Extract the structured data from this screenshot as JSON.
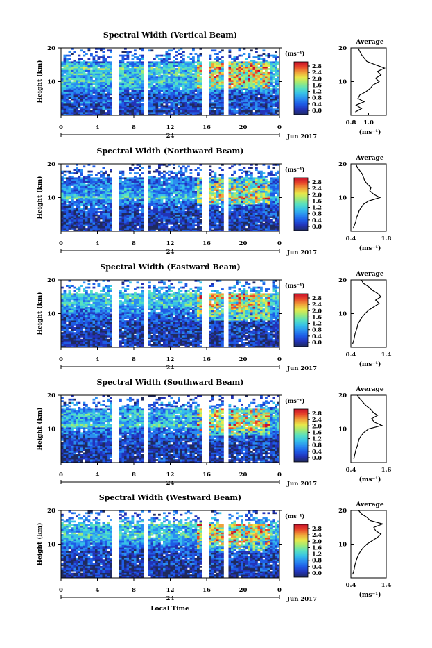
{
  "shared": {
    "y_label": "Height (km)",
    "x_ticks": [
      "0",
      "4",
      "8",
      "12",
      "16",
      "20",
      "0"
    ],
    "day_label": "24",
    "month_label": "Jun 2017",
    "x_axis_title": "Local Time",
    "average_title": "Average",
    "unit_label": "(ms⁻¹)",
    "colorbar_ticks": [
      "2.8",
      "2.4",
      "2.0",
      "1.6",
      "1.2",
      "0.8",
      "0.4",
      "0.0"
    ],
    "colormap": [
      "#1f2a5e",
      "#2233b8",
      "#1e5ce6",
      "#2a8cf0",
      "#36c0e8",
      "#58e0c0",
      "#9eea78",
      "#e8e84a",
      "#f0a23a",
      "#e8472a",
      "#c8102a"
    ],
    "gap_hours": [
      [
        5.6,
        6.3
      ],
      [
        9.2,
        9.7
      ],
      [
        15.6,
        16.3
      ],
      [
        18.0,
        18.5
      ]
    ]
  },
  "chart_data": [
    {
      "type": "heatmap",
      "title": "Spectral Width (Vertical Beam)",
      "x_range_hours": [
        0,
        24
      ],
      "ylim_km": [
        0,
        20
      ],
      "y_ticks": [
        "20",
        "10"
      ],
      "color_range": [
        0.0,
        2.8
      ],
      "profile": {
        "title": "Average",
        "xlabel": "(ms⁻¹)",
        "x_ticks": [
          "0.8",
          "1.0"
        ],
        "xlim": [
          0.8,
          1.2
        ],
        "height_km": [
          1,
          2,
          3,
          4,
          5,
          6,
          7,
          8,
          9,
          10,
          11,
          12,
          13,
          14,
          15,
          16,
          17,
          18,
          19,
          20
        ],
        "values": [
          0.85,
          0.92,
          0.86,
          0.95,
          0.88,
          0.9,
          0.97,
          1.02,
          1.05,
          1.12,
          1.08,
          1.14,
          1.1,
          1.18,
          1.08,
          0.98,
          0.95,
          0.92,
          0.9,
          0.88
        ]
      }
    },
    {
      "type": "heatmap",
      "title": "Spectral Width (Northward Beam)",
      "x_range_hours": [
        0,
        24
      ],
      "ylim_km": [
        0,
        20
      ],
      "y_ticks": [
        "20",
        "10"
      ],
      "color_range": [
        0.0,
        2.8
      ],
      "profile": {
        "title": "Average",
        "xlabel": "(ms⁻¹)",
        "x_ticks": [
          "0.4",
          "1.8"
        ],
        "xlim": [
          0.4,
          1.8
        ],
        "height_km": [
          1,
          2,
          3,
          4,
          5,
          6,
          7,
          8,
          9,
          10,
          11,
          12,
          13,
          14,
          15,
          16,
          17,
          18,
          19,
          20
        ],
        "values": [
          0.5,
          0.55,
          0.6,
          0.62,
          0.68,
          0.72,
          0.8,
          0.9,
          1.1,
          1.55,
          1.3,
          1.15,
          1.2,
          1.05,
          0.95,
          0.9,
          0.85,
          0.75,
          0.65,
          0.6
        ]
      }
    },
    {
      "type": "heatmap",
      "title": "Spectral Width (Eastward Beam)",
      "x_range_hours": [
        0,
        24
      ],
      "ylim_km": [
        0,
        20
      ],
      "y_ticks": [
        "20",
        "10"
      ],
      "color_range": [
        0.0,
        2.8
      ],
      "profile": {
        "title": "Average",
        "xlabel": "(ms⁻¹)",
        "x_ticks": [
          "0.4",
          "1.4"
        ],
        "xlim": [
          0.4,
          1.4
        ],
        "height_km": [
          1,
          2,
          3,
          4,
          5,
          6,
          7,
          8,
          9,
          10,
          11,
          12,
          13,
          14,
          15,
          16,
          17,
          18,
          19,
          20
        ],
        "values": [
          0.45,
          0.48,
          0.5,
          0.52,
          0.55,
          0.58,
          0.6,
          0.66,
          0.72,
          0.8,
          0.9,
          1.05,
          1.2,
          1.1,
          1.25,
          1.15,
          1.0,
          0.9,
          0.75,
          0.7
        ]
      }
    },
    {
      "type": "heatmap",
      "title": "Spectral Width (Southward Beam)",
      "x_range_hours": [
        0,
        24
      ],
      "ylim_km": [
        0,
        20
      ],
      "y_ticks": [
        "20",
        "10"
      ],
      "color_range": [
        0.0,
        2.8
      ],
      "profile": {
        "title": "Average",
        "xlabel": "(ms⁻¹)",
        "x_ticks": [
          "0.4",
          "1.6"
        ],
        "xlim": [
          0.4,
          1.6
        ],
        "height_km": [
          1,
          2,
          3,
          4,
          5,
          6,
          7,
          8,
          9,
          10,
          11,
          12,
          13,
          14,
          15,
          16,
          17,
          18,
          19,
          20
        ],
        "values": [
          0.5,
          0.52,
          0.55,
          0.58,
          0.62,
          0.65,
          0.68,
          0.75,
          0.85,
          1.0,
          1.45,
          1.2,
          1.1,
          1.3,
          1.15,
          1.05,
          0.9,
          0.8,
          0.7,
          0.62
        ]
      }
    },
    {
      "type": "heatmap",
      "title": "Spectral Width (Westward Beam)",
      "x_range_hours": [
        0,
        24
      ],
      "ylim_km": [
        0,
        20
      ],
      "y_ticks": [
        "20",
        "10"
      ],
      "color_range": [
        0.0,
        2.8
      ],
      "profile": {
        "title": "Average",
        "xlabel": "(ms⁻¹)",
        "x_ticks": [
          "0.4",
          "1.4"
        ],
        "xlim": [
          0.4,
          1.4
        ],
        "height_km": [
          1,
          2,
          3,
          4,
          5,
          6,
          7,
          8,
          9,
          10,
          11,
          12,
          13,
          14,
          15,
          16,
          17,
          18,
          19,
          20
        ],
        "values": [
          0.45,
          0.48,
          0.5,
          0.52,
          0.55,
          0.58,
          0.62,
          0.68,
          0.75,
          0.85,
          1.0,
          1.15,
          1.25,
          1.1,
          1.05,
          1.3,
          0.95,
          0.85,
          0.7,
          0.62
        ]
      }
    }
  ]
}
